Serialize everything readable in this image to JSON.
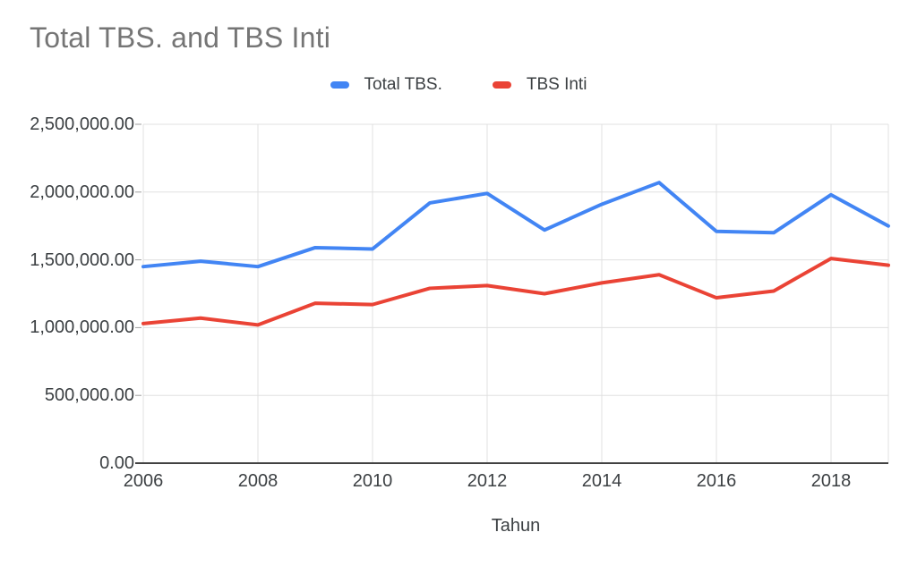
{
  "title": "Total TBS. and TBS Inti",
  "legend": {
    "items": [
      {
        "label": "Total TBS.",
        "color": "#4285F4"
      },
      {
        "label": "TBS Inti",
        "color": "#EA4335"
      }
    ]
  },
  "x_axis": {
    "title": "Tahun",
    "tick_labels": [
      "2006",
      "2008",
      "2010",
      "2012",
      "2014",
      "2016",
      "2018"
    ]
  },
  "y_axis": {
    "tick_labels": [
      "0.00",
      "500,000.00",
      "1,000,000.00",
      "1,500,000.00",
      "2,000,000.00",
      "2,500,000.00"
    ]
  },
  "colors": {
    "grid": "#E0E0E0",
    "axis_line": "#424242",
    "tick_mark": "#9E9E9E",
    "title_text": "#757575",
    "label_text": "#3C4043",
    "series_total_tbs": "#4285F4",
    "series_tbs_inti": "#EA4335"
  },
  "chart_data": {
    "type": "line",
    "title": "Total TBS. and TBS Inti",
    "xlabel": "Tahun",
    "ylabel": "",
    "x": [
      2006,
      2007,
      2008,
      2009,
      2010,
      2011,
      2012,
      2013,
      2014,
      2015,
      2016,
      2017,
      2018,
      2019
    ],
    "series": [
      {
        "name": "Total TBS.",
        "color": "#4285F4",
        "values": [
          1450000,
          1490000,
          1450000,
          1590000,
          1580000,
          1920000,
          1990000,
          1720000,
          1910000,
          2070000,
          1710000,
          1700000,
          1980000,
          1750000
        ]
      },
      {
        "name": "TBS Inti",
        "color": "#EA4335",
        "values": [
          1030000,
          1070000,
          1020000,
          1180000,
          1170000,
          1290000,
          1310000,
          1250000,
          1330000,
          1390000,
          1220000,
          1270000,
          1510000,
          1460000
        ]
      }
    ],
    "xlim": [
      2006,
      2019
    ],
    "ylim": [
      0,
      2500000
    ],
    "x_ticks": [
      2006,
      2008,
      2010,
      2012,
      2014,
      2016,
      2018
    ],
    "y_ticks": [
      0,
      500000,
      1000000,
      1500000,
      2000000,
      2500000
    ],
    "grid": true,
    "legend_position": "top"
  }
}
